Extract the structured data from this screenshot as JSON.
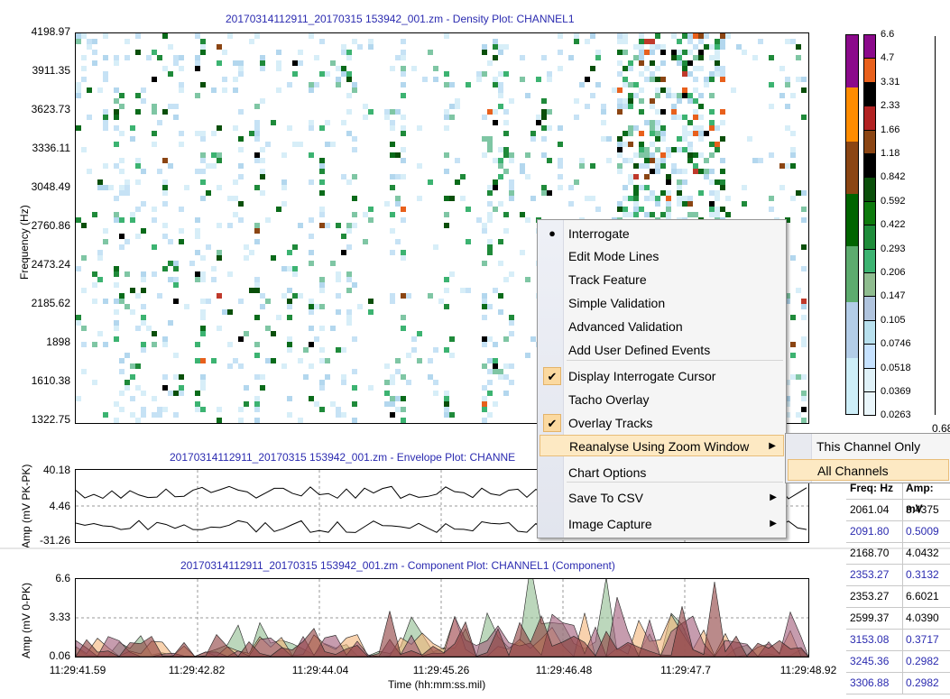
{
  "density": {
    "title": "20170314112911_20170315 153942_001.zm - Density Plot: CHANNEL1",
    "ylabel": "Frequency (Hz)",
    "yticks": [
      "4198.97",
      "3911.35",
      "3623.73",
      "3336.11",
      "3048.49",
      "2760.86",
      "2473.24",
      "2185.62",
      "1898",
      "1610.38",
      "1322.75"
    ]
  },
  "envelope": {
    "title": "20170314112911_20170315 153942_001.zm  - Envelope Plot:  CHANNE",
    "ylabel": "Amp (mV PK-PK)",
    "yticks": [
      "40.18",
      "4.46",
      "-31.26"
    ]
  },
  "component": {
    "title": "20170314112911_20170315 153942_001.zm - Component Plot: CHANNEL1 (Component)",
    "ylabel": "Amp (mV 0-PK)",
    "yticks": [
      "6.6",
      "3.33",
      "0.06"
    ],
    "xticks": [
      "11:29:41.59",
      "11:29:42.82",
      "11:29:44.04",
      "11:29:45.26",
      "11:29:46.48",
      "11:29:47.7",
      "11:29:48.92"
    ],
    "xlabel": "Time (hh:mm:ss.mil)"
  },
  "legend": {
    "labels": [
      "6.6",
      "4.7",
      "3.31",
      "2.33",
      "1.66",
      "1.18",
      "0.842",
      "0.592",
      "0.422",
      "0.293",
      "0.206",
      "0.147",
      "0.105",
      "0.0746",
      "0.0518",
      "0.0369",
      "0.0263"
    ],
    "colors": [
      "#8b0a8b",
      "#e8601c",
      "#000000",
      "#b22222",
      "#8b4513",
      "#000000",
      "#0a4f0a",
      "#0d7a0d",
      "#1e8c3a",
      "#3cb371",
      "#8fbc8f",
      "#b0c4de",
      "#b8e0ee",
      "#c6e2ff",
      "#dff1f8",
      "#eaf6fb",
      "#ffffff"
    ],
    "swatch_colors": [
      "#8b0a8b",
      "#ff8c00",
      "#8b4513",
      "#006400",
      "#2e8b57",
      "#66bb6a",
      "#b3cde8",
      "#cdeef8"
    ],
    "right_bottom_label": "0.68"
  },
  "menu": {
    "items": [
      {
        "label": "Interrogate",
        "check": "dot"
      },
      {
        "label": "Edit Mode Lines",
        "check": ""
      },
      {
        "label": "Track Feature",
        "check": ""
      },
      {
        "label": "Simple Validation",
        "check": ""
      },
      {
        "label": "Advanced Validation",
        "check": ""
      },
      {
        "label": "Add User Defined Events",
        "check": ""
      },
      {
        "label": "Display Interrogate Cursor",
        "check": "tick"
      },
      {
        "label": "Tacho Overlay",
        "check": ""
      },
      {
        "label": "Overlay Tracks",
        "check": "tick"
      },
      {
        "label": "Reanalyse Using Zoom Window",
        "check": "",
        "submenu": true
      },
      {
        "label": "Chart Options",
        "check": ""
      },
      {
        "label": "Save To CSV",
        "check": "",
        "submenu": true
      },
      {
        "label": "Image Capture",
        "check": "",
        "submenu": true
      }
    ],
    "submenu_items": [
      "This Channel Only",
      "All Channels"
    ]
  },
  "table": {
    "headers": [
      "Freq: Hz",
      "Amp: mV"
    ],
    "rows": [
      {
        "freq": "2061.04",
        "amp": "3.4375",
        "color": "#000000"
      },
      {
        "freq": "2091.80",
        "amp": "0.5009",
        "color": "#2b2bb0"
      },
      {
        "freq": "2168.70",
        "amp": "4.0432",
        "color": "#000000"
      },
      {
        "freq": "2353.27",
        "amp": "0.3132",
        "color": "#2b2bb0"
      },
      {
        "freq": "2353.27",
        "amp": "6.6021",
        "color": "#000000"
      },
      {
        "freq": "2599.37",
        "amp": "4.0390",
        "color": "#000000"
      },
      {
        "freq": "3153.08",
        "amp": "0.3717",
        "color": "#2b2bb0"
      },
      {
        "freq": "3245.36",
        "amp": "0.2982",
        "color": "#2b2bb0"
      },
      {
        "freq": "3306.88",
        "amp": "0.2982",
        "color": "#2b2bb0"
      }
    ]
  }
}
